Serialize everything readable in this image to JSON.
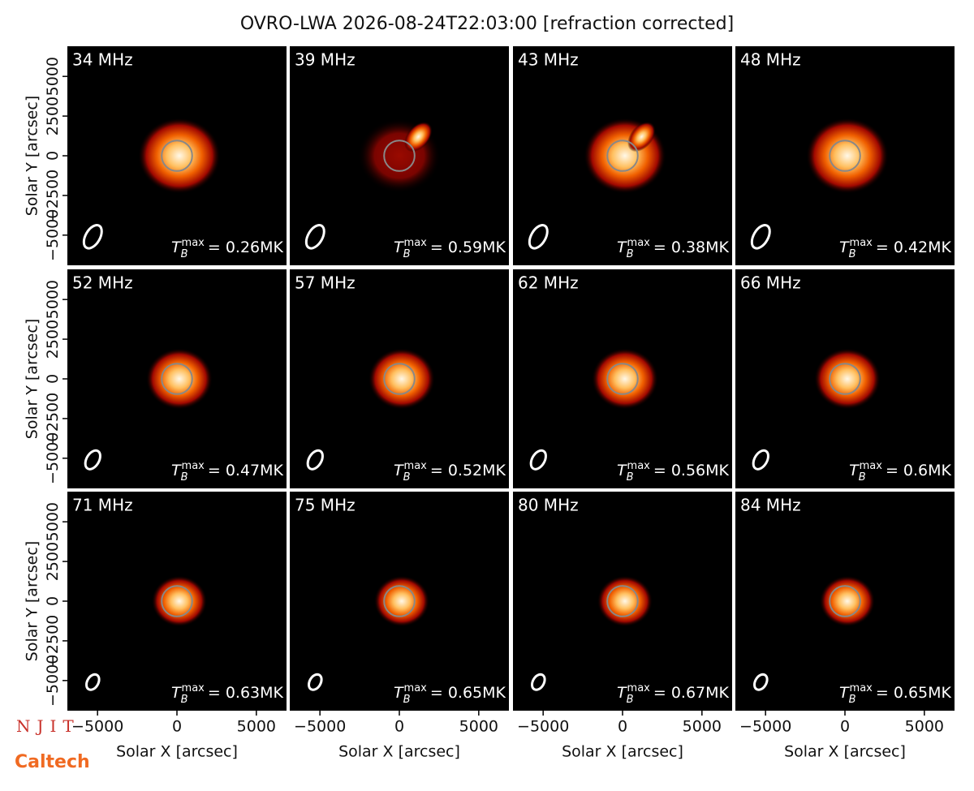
{
  "title": "OVRO-LWA 2026-08-24T22:03:00 [refraction corrected]",
  "logos": [
    "NJIT",
    "Caltech"
  ],
  "chart_data": [
    {
      "type": "image",
      "title": "34 MHz",
      "annotation": {
        "symbol": "T",
        "subscript": "B",
        "superscript": "max",
        "text": "= 0.26MK"
      },
      "xlim": [
        -6900,
        6900
      ],
      "ylim": [
        -6900,
        6900
      ],
      "ylabel": "Solar Y [arcsec]",
      "yticks": [
        {
          "value": -5000,
          "label": "−5000"
        },
        {
          "value": -2500,
          "label": "−2500"
        },
        0,
        2500,
        5000
      ]
    },
    {
      "type": "image",
      "title": "39 MHz",
      "annotation": {
        "symbol": "T",
        "subscript": "B",
        "superscript": "max",
        "text": "= 0.59MK"
      },
      "xlim": [
        -6900,
        6900
      ],
      "ylim": [
        -6900,
        6900
      ]
    },
    {
      "type": "image",
      "title": "43 MHz",
      "annotation": {
        "symbol": "T",
        "subscript": "B",
        "superscript": "max",
        "text": "= 0.38MK"
      },
      "xlim": [
        -6900,
        6900
      ],
      "ylim": [
        -6900,
        6900
      ]
    },
    {
      "type": "image",
      "title": "48 MHz",
      "annotation": {
        "symbol": "T",
        "subscript": "B",
        "superscript": "max",
        "text": "= 0.42MK"
      },
      "xlim": [
        -6900,
        6900
      ],
      "ylim": [
        -6900,
        6900
      ]
    },
    {
      "type": "image",
      "title": "52 MHz",
      "annotation": {
        "symbol": "T",
        "subscript": "B",
        "superscript": "max",
        "text": "= 0.47MK"
      },
      "xlim": [
        -6900,
        6900
      ],
      "ylim": [
        -6900,
        6900
      ],
      "ylabel": "Solar Y [arcsec]",
      "yticks": [
        {
          "value": -5000,
          "label": "−5000"
        },
        {
          "value": -2500,
          "label": "−2500"
        },
        0,
        2500,
        5000
      ]
    },
    {
      "type": "image",
      "title": "57 MHz",
      "annotation": {
        "symbol": "T",
        "subscript": "B",
        "superscript": "max",
        "text": "= 0.52MK"
      },
      "xlim": [
        -6900,
        6900
      ],
      "ylim": [
        -6900,
        6900
      ]
    },
    {
      "type": "image",
      "title": "62 MHz",
      "annotation": {
        "symbol": "T",
        "subscript": "B",
        "superscript": "max",
        "text": "= 0.56MK"
      },
      "xlim": [
        -6900,
        6900
      ],
      "ylim": [
        -6900,
        6900
      ]
    },
    {
      "type": "image",
      "title": "66 MHz",
      "annotation": {
        "symbol": "T",
        "subscript": "B",
        "superscript": "max",
        "text": "= 0.6MK"
      },
      "xlim": [
        -6900,
        6900
      ],
      "ylim": [
        -6900,
        6900
      ]
    },
    {
      "type": "image",
      "title": "71 MHz",
      "annotation": {
        "symbol": "T",
        "subscript": "B",
        "superscript": "max",
        "text": "= 0.63MK"
      },
      "xlim": [
        -6900,
        6900
      ],
      "ylim": [
        -6900,
        6900
      ],
      "ylabel": "Solar Y [arcsec]",
      "yticks": [
        {
          "value": -5000,
          "label": "−5000"
        },
        {
          "value": -2500,
          "label": "−2500"
        },
        0,
        2500,
        5000
      ],
      "xlabel": "Solar X [arcsec]",
      "xticks": [
        {
          "value": -5000,
          "label": "−5000"
        },
        0,
        5000
      ]
    },
    {
      "type": "image",
      "title": "75 MHz",
      "annotation": {
        "symbol": "T",
        "subscript": "B",
        "superscript": "max",
        "text": "= 0.65MK"
      },
      "xlim": [
        -6900,
        6900
      ],
      "ylim": [
        -6900,
        6900
      ],
      "xlabel": "Solar X [arcsec]",
      "xticks": [
        {
          "value": -5000,
          "label": "−5000"
        },
        0,
        5000
      ]
    },
    {
      "type": "image",
      "title": "80 MHz",
      "annotation": {
        "symbol": "T",
        "subscript": "B",
        "superscript": "max",
        "text": "= 0.67MK"
      },
      "xlim": [
        -6900,
        6900
      ],
      "ylim": [
        -6900,
        6900
      ],
      "xlabel": "Solar X [arcsec]",
      "xticks": [
        {
          "value": -5000,
          "label": "−5000"
        },
        0,
        5000
      ]
    },
    {
      "type": "image",
      "title": "84 MHz",
      "annotation": {
        "symbol": "T",
        "subscript": "B",
        "superscript": "max",
        "text": "= 0.65MK"
      },
      "xlim": [
        -6900,
        6900
      ],
      "ylim": [
        -6900,
        6900
      ],
      "xlabel": "Solar X [arcsec]",
      "xticks": [
        {
          "value": -5000,
          "label": "−5000"
        },
        0,
        5000
      ]
    }
  ]
}
